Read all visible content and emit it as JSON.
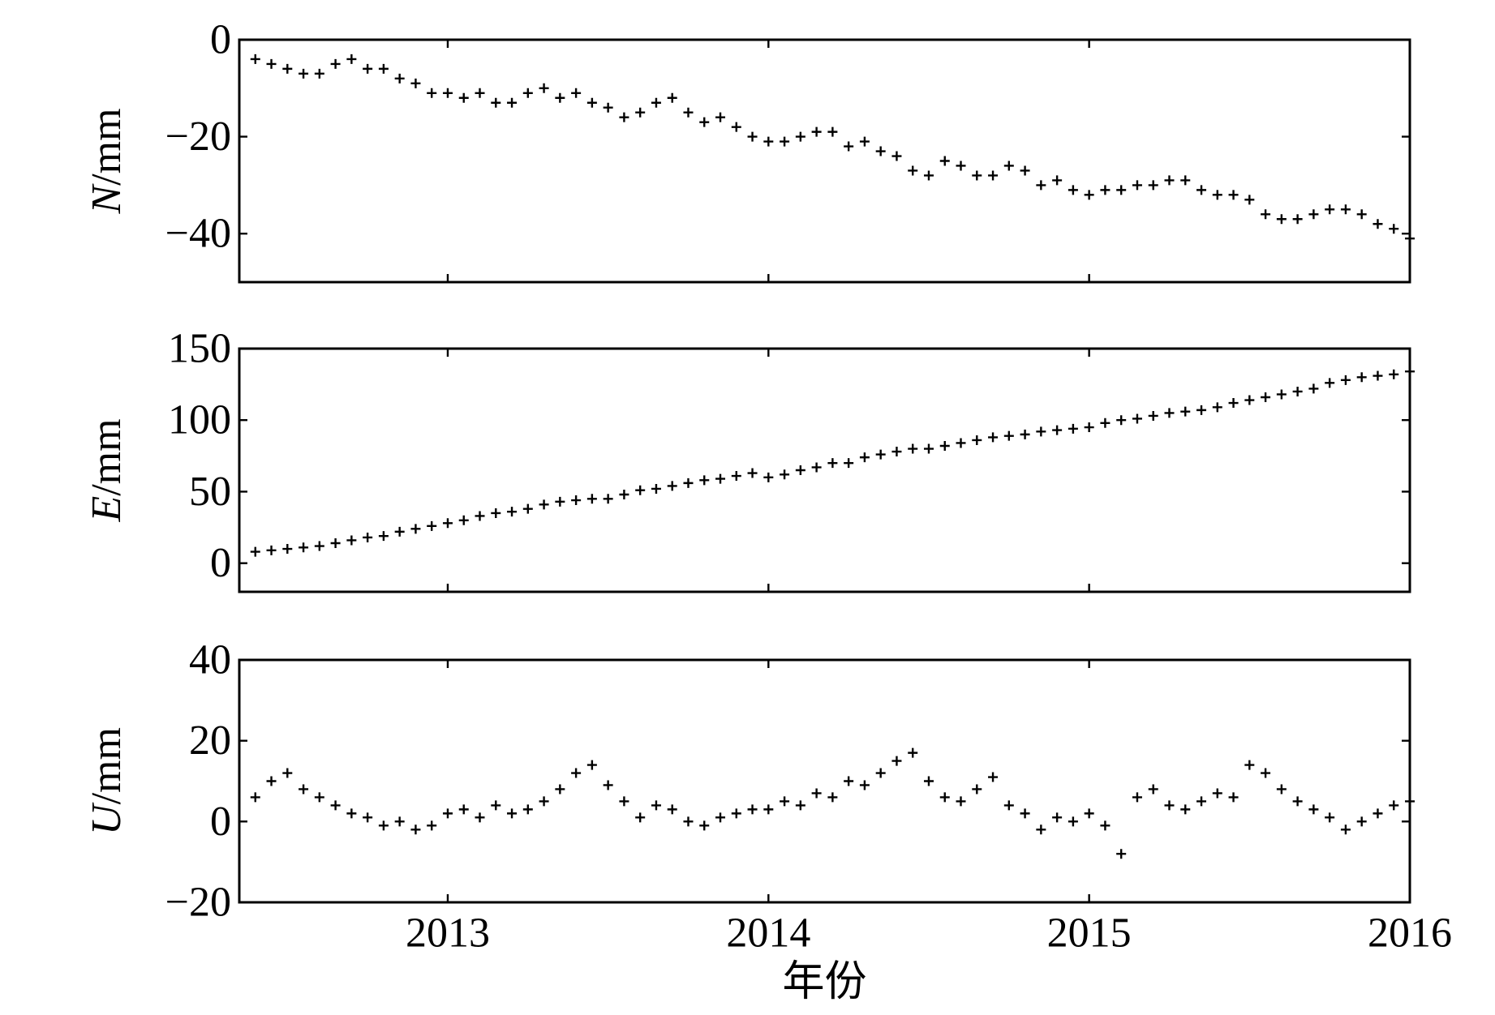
{
  "chart_data": [
    {
      "type": "scatter",
      "ylabel_symbol": "N",
      "ylabel_unit": "/mm",
      "color": "#000000",
      "xlim": [
        2012.35,
        2016
      ],
      "xticks": [
        2013,
        2014,
        2015,
        2016
      ],
      "ylim": [
        -50,
        0
      ],
      "yticks": [
        0,
        {
          "value": -20,
          "label": "−20"
        },
        {
          "value": -40,
          "label": "−40"
        }
      ],
      "x": [
        2012.4,
        2012.45,
        2012.5,
        2012.55,
        2012.6,
        2012.65,
        2012.7,
        2012.75,
        2012.8,
        2012.85,
        2012.9,
        2012.95,
        2013,
        2013.05,
        2013.1,
        2013.15,
        2013.2,
        2013.25,
        2013.3,
        2013.35,
        2013.4,
        2013.45,
        2013.5,
        2013.55,
        2013.6,
        2013.65,
        2013.7,
        2013.75,
        2013.8,
        2013.85,
        2013.9,
        2013.95,
        2014,
        2014.05,
        2014.1,
        2014.15,
        2014.2,
        2014.25,
        2014.3,
        2014.35,
        2014.4,
        2014.45,
        2014.5,
        2014.55,
        2014.6,
        2014.65,
        2014.7,
        2014.75,
        2014.8,
        2014.85,
        2014.9,
        2014.95,
        2015,
        2015.05,
        2015.1,
        2015.15,
        2015.2,
        2015.25,
        2015.3,
        2015.35,
        2015.4,
        2015.45,
        2015.5,
        2015.55,
        2015.6,
        2015.65,
        2015.7,
        2015.75,
        2015.8,
        2015.85,
        2015.9,
        2015.95,
        2016
      ],
      "values": [
        -4,
        -5,
        -6,
        -7,
        -7,
        -5,
        -4,
        -6,
        -6,
        -8,
        -9,
        -11,
        -11,
        -12,
        -11,
        -13,
        -13,
        -11,
        -10,
        -12,
        -11,
        -13,
        -14,
        -16,
        -15,
        -13,
        -12,
        -15,
        -17,
        -16,
        -18,
        -20,
        -21,
        -21,
        -20,
        -19,
        -19,
        -22,
        -21,
        -23,
        -24,
        -27,
        -28,
        -25,
        -26,
        -28,
        -28,
        -26,
        -27,
        -30,
        -29,
        -31,
        -32,
        -31,
        -31,
        -30,
        -30,
        -29,
        -29,
        -31,
        -32,
        -32,
        -33,
        -36,
        -37,
        -37,
        -36,
        -35,
        -35,
        -36,
        -38,
        -39,
        -41
      ]
    },
    {
      "type": "scatter",
      "ylabel_symbol": "E",
      "ylabel_unit": "/mm",
      "color": "#000000",
      "xlim": [
        2012.35,
        2016
      ],
      "xticks": [
        2013,
        2014,
        2015,
        2016
      ],
      "ylim": [
        -20,
        150
      ],
      "yticks": [
        0,
        50,
        100,
        150
      ],
      "x": [
        2012.4,
        2012.45,
        2012.5,
        2012.55,
        2012.6,
        2012.65,
        2012.7,
        2012.75,
        2012.8,
        2012.85,
        2012.9,
        2012.95,
        2013,
        2013.05,
        2013.1,
        2013.15,
        2013.2,
        2013.25,
        2013.3,
        2013.35,
        2013.4,
        2013.45,
        2013.5,
        2013.55,
        2013.6,
        2013.65,
        2013.7,
        2013.75,
        2013.8,
        2013.85,
        2013.9,
        2013.95,
        2014,
        2014.05,
        2014.1,
        2014.15,
        2014.2,
        2014.25,
        2014.3,
        2014.35,
        2014.4,
        2014.45,
        2014.5,
        2014.55,
        2014.6,
        2014.65,
        2014.7,
        2014.75,
        2014.8,
        2014.85,
        2014.9,
        2014.95,
        2015,
        2015.05,
        2015.1,
        2015.15,
        2015.2,
        2015.25,
        2015.3,
        2015.35,
        2015.4,
        2015.45,
        2015.5,
        2015.55,
        2015.6,
        2015.65,
        2015.7,
        2015.75,
        2015.8,
        2015.85,
        2015.9,
        2015.95,
        2016
      ],
      "values": [
        8,
        9,
        10,
        11,
        12,
        14,
        16,
        18,
        19,
        22,
        24,
        26,
        28,
        30,
        33,
        35,
        36,
        38,
        41,
        43,
        44,
        45,
        45,
        48,
        51,
        52,
        54,
        56,
        58,
        59,
        61,
        63,
        60,
        62,
        65,
        67,
        70,
        70,
        74,
        76,
        78,
        80,
        80,
        82,
        84,
        86,
        88,
        89,
        90,
        92,
        93,
        94,
        95,
        98,
        100,
        101,
        103,
        105,
        106,
        107,
        109,
        112,
        114,
        116,
        118,
        120,
        122,
        126,
        128,
        130,
        131,
        132,
        134
      ]
    },
    {
      "type": "scatter",
      "ylabel_symbol": "U",
      "ylabel_unit": "/mm",
      "color": "#000000",
      "xlabel": "年份",
      "xlim": [
        2012.35,
        2016
      ],
      "xticks": [
        2013,
        2014,
        2015,
        2016
      ],
      "ylim": [
        -20,
        40
      ],
      "yticks": [
        {
          "value": -20,
          "label": "−20"
        },
        0,
        20,
        40
      ],
      "x": [
        2012.4,
        2012.45,
        2012.5,
        2012.55,
        2012.6,
        2012.65,
        2012.7,
        2012.75,
        2012.8,
        2012.85,
        2012.9,
        2012.95,
        2013,
        2013.05,
        2013.1,
        2013.15,
        2013.2,
        2013.25,
        2013.3,
        2013.35,
        2013.4,
        2013.45,
        2013.5,
        2013.55,
        2013.6,
        2013.65,
        2013.7,
        2013.75,
        2013.8,
        2013.85,
        2013.9,
        2013.95,
        2014,
        2014.05,
        2014.1,
        2014.15,
        2014.2,
        2014.25,
        2014.3,
        2014.35,
        2014.4,
        2014.45,
        2014.5,
        2014.55,
        2014.6,
        2014.65,
        2014.7,
        2014.75,
        2014.8,
        2014.85,
        2014.9,
        2014.95,
        2015,
        2015.05,
        2015.1,
        2015.15,
        2015.2,
        2015.25,
        2015.3,
        2015.35,
        2015.4,
        2015.45,
        2015.5,
        2015.55,
        2015.6,
        2015.65,
        2015.7,
        2015.75,
        2015.8,
        2015.85,
        2015.9,
        2015.95,
        2016
      ],
      "values": [
        6,
        10,
        12,
        8,
        6,
        4,
        2,
        1,
        -1,
        0,
        -2,
        -1,
        2,
        3,
        1,
        4,
        2,
        3,
        5,
        8,
        12,
        14,
        9,
        5,
        1,
        4,
        3,
        0,
        -1,
        1,
        2,
        3,
        3,
        5,
        4,
        7,
        6,
        10,
        9,
        12,
        15,
        17,
        10,
        6,
        5,
        8,
        11,
        4,
        2,
        -2,
        1,
        0,
        2,
        -1,
        -8,
        6,
        8,
        4,
        3,
        5,
        7,
        6,
        14,
        12,
        8,
        5,
        3,
        1,
        -2,
        0,
        2,
        4,
        5
      ]
    }
  ]
}
